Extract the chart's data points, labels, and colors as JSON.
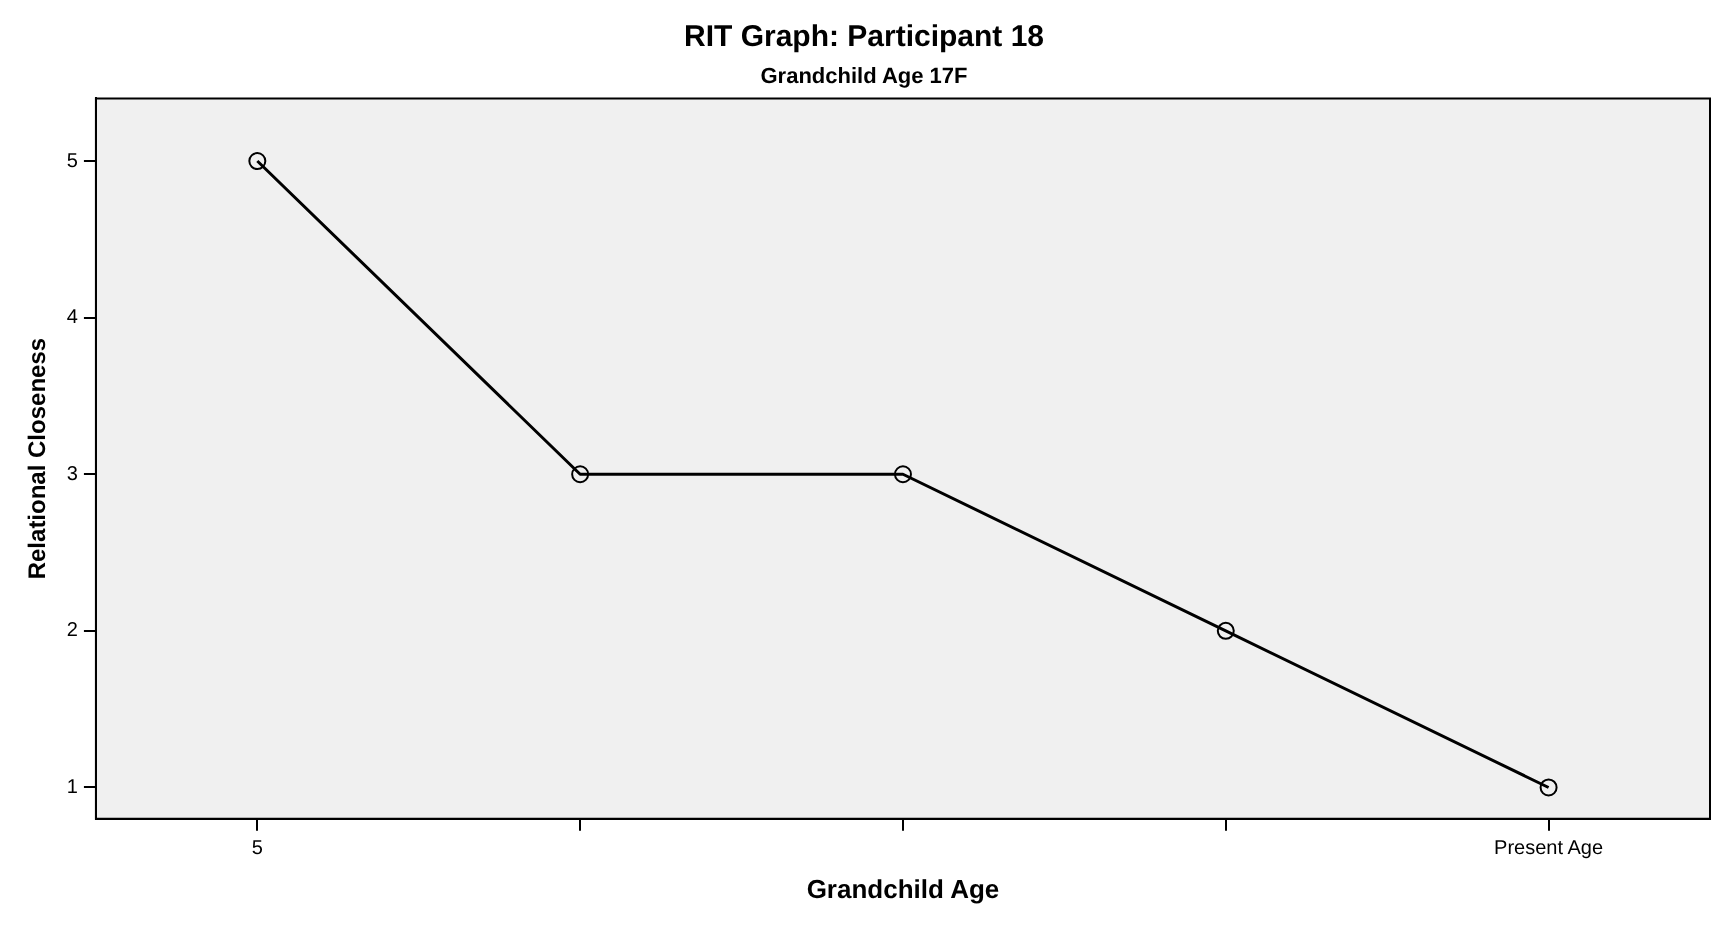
{
  "chart_data": {
    "type": "line",
    "title": "RIT Graph: Participant 18",
    "subtitle": "Grandchild Age 17F",
    "xlabel": "Grandchild Age",
    "ylabel": "Relational Closeness",
    "categories": [
      "5",
      null,
      null,
      null,
      "Present Age"
    ],
    "series": [
      {
        "color": "#000000",
        "values": [
          5,
          3,
          3,
          2,
          1
        ]
      }
    ],
    "ylim": [
      0.8,
      5.4
    ],
    "yticks": [
      1,
      2,
      3,
      4,
      5
    ],
    "grid": false,
    "legend": false,
    "marker": "circle",
    "line_style": "solid"
  }
}
